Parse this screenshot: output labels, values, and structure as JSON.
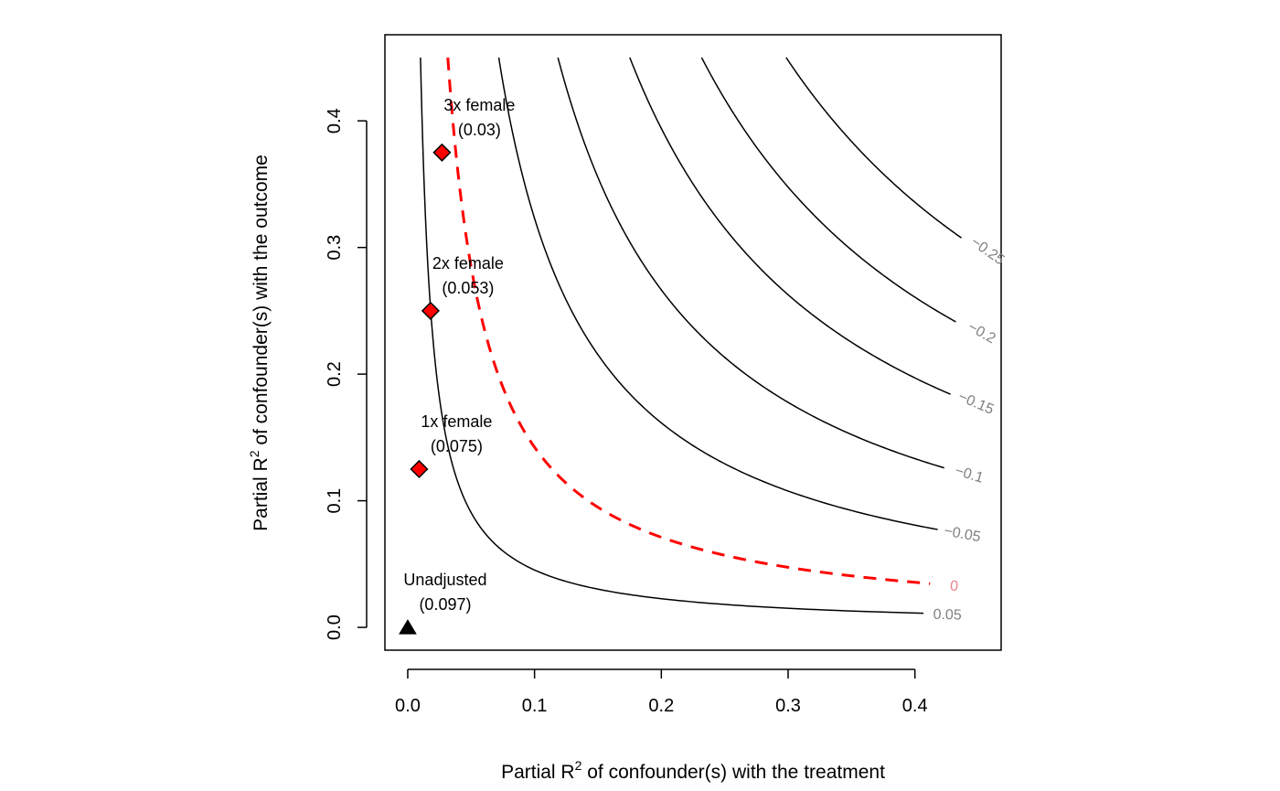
{
  "chart_data": {
    "type": "contour",
    "xlabel_main": "Partial R",
    "xlabel_sup": "2",
    "xlabel_rest": " of confounder(s) with the treatment",
    "ylabel_main": "Partial R",
    "ylabel_sup": "2",
    "ylabel_rest": " of confounder(s) with the outcome",
    "xlim": [
      -0.018,
      0.468
    ],
    "ylim": [
      -0.018,
      0.468
    ],
    "x_ticks": [
      "0.0",
      "0.1",
      "0.2",
      "0.3",
      "0.4"
    ],
    "y_ticks": [
      "0.0",
      "0.1",
      "0.2",
      "0.3",
      "0.4"
    ],
    "estimate": 0.097,
    "contours": [
      {
        "label": "0.05",
        "level": 0.05,
        "k": 0.00453,
        "color": "#000000",
        "dashed": false,
        "label_color": "#808080"
      },
      {
        "label": "0",
        "level": 0.0,
        "k": 0.01423,
        "color": "#ff0000",
        "dashed": true,
        "label_color": "#e8858a"
      },
      {
        "label": "−0.05",
        "level": -0.05,
        "k": 0.0323,
        "color": "#000000",
        "dashed": false,
        "label_color": "#808080"
      },
      {
        "label": "−0.1",
        "level": -0.1,
        "k": 0.0533,
        "color": "#000000",
        "dashed": false,
        "label_color": "#808080"
      },
      {
        "label": "−0.15",
        "level": -0.15,
        "k": 0.0788,
        "color": "#000000",
        "dashed": false,
        "label_color": "#808080"
      },
      {
        "label": "−0.2",
        "level": -0.2,
        "k": 0.1043,
        "color": "#000000",
        "dashed": false,
        "label_color": "#808080"
      },
      {
        "label": "−0.25",
        "level": -0.25,
        "k": 0.1343,
        "color": "#000000",
        "dashed": false,
        "label_color": "#808080"
      }
    ],
    "points": [
      {
        "name": "Unadjusted",
        "value": "(0.097)",
        "x": 0.0,
        "y": 0.0,
        "marker": "triangle",
        "color": "#000000"
      },
      {
        "name": "1x female",
        "value": "(0.075)",
        "x": 0.009,
        "y": 0.125,
        "marker": "diamond",
        "color": "#ff0000"
      },
      {
        "name": "2x female",
        "value": "(0.053)",
        "x": 0.018,
        "y": 0.25,
        "marker": "diamond",
        "color": "#ff0000"
      },
      {
        "name": "3x female",
        "value": "(0.03)",
        "x": 0.027,
        "y": 0.375,
        "marker": "diamond",
        "color": "#ff0000"
      }
    ]
  }
}
